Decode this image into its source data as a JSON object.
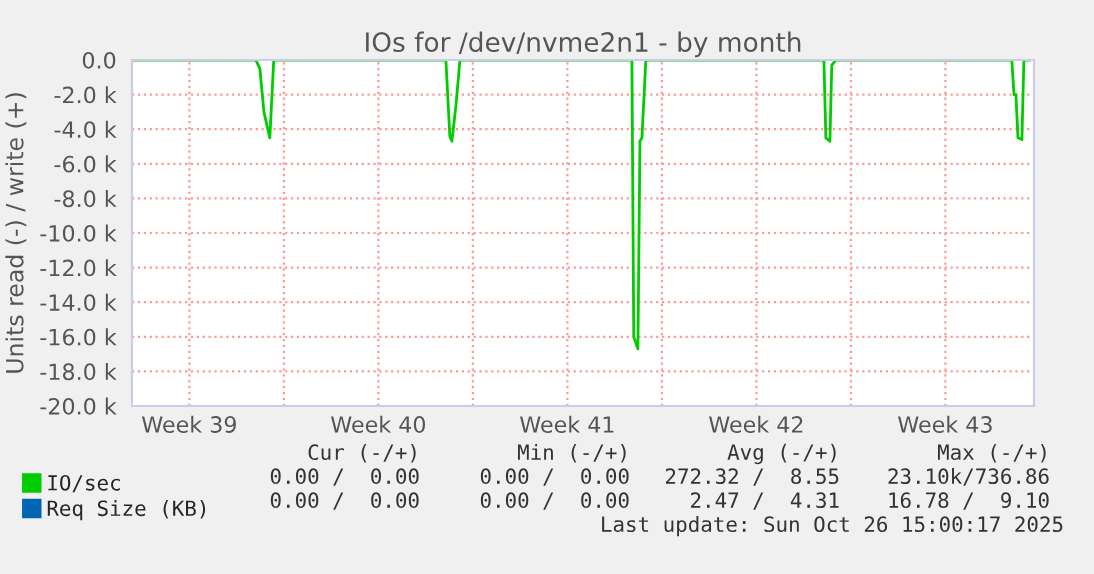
{
  "chart_data": {
    "type": "line",
    "title": "IOs for /dev/nvme2n1 - by month",
    "ylabel": "Units read (-) / write (+)",
    "xlim": [
      "2025-09-23T09:00",
      "2025-10-26T18:45"
    ],
    "xticks": [
      {
        "value": "2025-09-25T12:00",
        "label": "Week 39"
      },
      {
        "value": "2025-09-29",
        "label": null
      },
      {
        "value": "2025-10-02T12:00",
        "label": "Week 40"
      },
      {
        "value": "2025-10-06",
        "label": null
      },
      {
        "value": "2025-10-09T12:00",
        "label": "Week 41"
      },
      {
        "value": "2025-10-13",
        "label": null
      },
      {
        "value": "2025-10-16T12:00",
        "label": "Week 42"
      },
      {
        "value": "2025-10-20",
        "label": null
      },
      {
        "value": "2025-10-23T12:00",
        "label": "Week 43"
      }
    ],
    "ylim": [
      -20000,
      0
    ],
    "yticks": [
      {
        "value": -20000,
        "label": "-20.0 k"
      },
      {
        "value": -18000,
        "label": "-18.0 k"
      },
      {
        "value": -16000,
        "label": "-16.0 k"
      },
      {
        "value": -14000,
        "label": "-14.0 k"
      },
      {
        "value": -12000,
        "label": "-12.0 k"
      },
      {
        "value": -10000,
        "label": "-10.0 k"
      },
      {
        "value": -8000,
        "label": "-8.0 k"
      },
      {
        "value": -6000,
        "label": "-6.0 k"
      },
      {
        "value": -4000,
        "label": "-4.0 k"
      },
      {
        "value": -2000,
        "label": "-2.0 k"
      },
      {
        "value": 0,
        "label": "0.0"
      }
    ],
    "grid": true,
    "legend": "bottom left",
    "marker": "none",
    "line_style": "solid",
    "series": [
      {
        "name": "IO/sec",
        "color": "#00cc00",
        "x": [
          "2025-09-23T09:00",
          "2025-09-27T23:00",
          "2025-09-28T02:40",
          "2025-09-28T06:15",
          "2025-09-28T11:30",
          "2025-09-28T15:00",
          "2025-10-05T00:00",
          "2025-10-05T03:30",
          "2025-10-05T05:20",
          "2025-10-05T09:00",
          "2025-10-05T12:30",
          "2025-10-11T21:20",
          "2025-10-11T23:00",
          "2025-10-12T02:40",
          "2025-10-12T04:30",
          "2025-10-12T06:15",
          "2025-10-12T09:45",
          "2025-10-19T00:00",
          "2025-10-19T01:45",
          "2025-10-19T05:20",
          "2025-10-19T07:00",
          "2025-10-19T10:40",
          "2025-10-25T23:00",
          "2025-10-26T01:00",
          "2025-10-26T02:40",
          "2025-10-26T04:30",
          "2025-10-26T08:00",
          "2025-10-26T09:45",
          "2025-10-26T15:00"
        ],
        "values": [
          0,
          0,
          -500,
          -3000,
          -4500,
          0,
          0,
          -4400,
          -4700,
          -2600,
          0,
          0,
          -16000,
          -16700,
          -4700,
          -4500,
          0,
          0,
          -4500,
          -4700,
          -300,
          0,
          0,
          -2000,
          -2000,
          -4500,
          -4600,
          0,
          0
        ]
      },
      {
        "name": "Req Size (KB)",
        "color": "#0066b3"
      }
    ],
    "annotations": [
      "Cur (-/+)",
      "Min (-/+)",
      "Avg (-/+)",
      "Max (-/+)",
      "0.00 /  0.00",
      "0.00 /  0.00",
      "272.32 /  8.55",
      "23.10k/736.86",
      "0.00 /  0.00",
      "0.00 /  0.00",
      "2.47 /  4.31",
      "16.78 /  9.10",
      "Last update: Sun Oct 26 15:00:17 2025"
    ]
  }
}
